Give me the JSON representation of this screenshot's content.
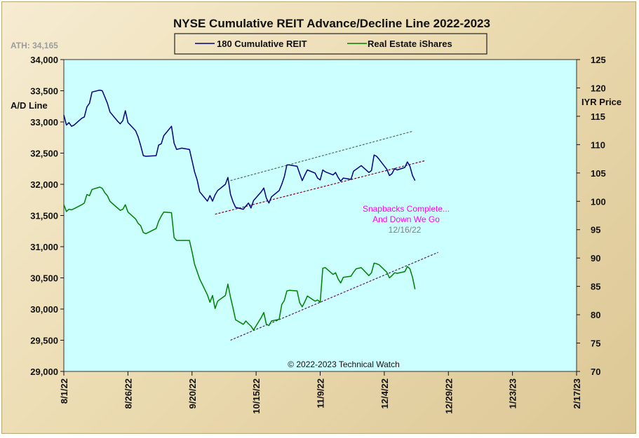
{
  "chart_data": {
    "type": "line",
    "title": "NYSE Cumulative  REIT Advance/Decline  Line 2022-2023",
    "ath_label": "ATH: 34,165",
    "ylabel_left": "A/D Line",
    "ylabel_right": "IYR Price",
    "copyright": "© 2022-2023  Technical  Watch",
    "annotation": {
      "lines": [
        "Snapbacks Complete...",
        "And Down We Go"
      ],
      "date": "12/16/22",
      "color": "#ff00ff",
      "date_color": "#808080"
    },
    "ylim_left": [
      29000,
      34000
    ],
    "ylim_right": [
      70,
      125
    ],
    "yticks_left": [
      "29,000",
      "29,500",
      "30,000",
      "30,500",
      "31,000",
      "31,500",
      "32,000",
      "32,500",
      "33,000",
      "33,500",
      "34,000"
    ],
    "yticks_left_values": [
      29000,
      29500,
      30000,
      30500,
      31000,
      31500,
      32000,
      32500,
      33000,
      33500,
      34000
    ],
    "yticks_right": [
      "70",
      "75",
      "80",
      "85",
      "90",
      "95",
      "100",
      "105",
      "110",
      "115",
      "120",
      "125"
    ],
    "yticks_right_values": [
      70,
      75,
      80,
      85,
      90,
      95,
      100,
      105,
      110,
      115,
      120,
      125
    ],
    "x_range": [
      "2022-08-01",
      "2023-02-17"
    ],
    "xticks": [
      "8/1/22",
      "8/26/22",
      "9/20/22",
      "10/15/22",
      "11/9/22",
      "12/4/22",
      "12/29/22",
      "1/23/23",
      "2/17/23"
    ],
    "xticks_dates": [
      "2022-08-01",
      "2022-08-26",
      "2022-09-20",
      "2022-10-15",
      "2022-11-09",
      "2022-12-04",
      "2022-12-29",
      "2023-01-23",
      "2023-02-17"
    ],
    "colors": {
      "plot_bg": "#ccffff",
      "ad_line": "#000080",
      "iyr": "#008000",
      "upper_channel": "#556b55",
      "lower_channel": "#800020",
      "lower_channel_iyr": "#5a1a6e"
    },
    "series": [
      {
        "name": "180 Cumulative REIT",
        "axis": "left",
        "color": "#000080",
        "points": [
          [
            "2022-08-01",
            33110
          ],
          [
            "2022-08-02",
            32950
          ],
          [
            "2022-08-03",
            32990
          ],
          [
            "2022-08-04",
            32930
          ],
          [
            "2022-08-05",
            32950
          ],
          [
            "2022-08-08",
            33060
          ],
          [
            "2022-08-09",
            33080
          ],
          [
            "2022-08-10",
            33240
          ],
          [
            "2022-08-11",
            33300
          ],
          [
            "2022-08-12",
            33480
          ],
          [
            "2022-08-15",
            33510
          ],
          [
            "2022-08-16",
            33500
          ],
          [
            "2022-08-17",
            33400
          ],
          [
            "2022-08-18",
            33300
          ],
          [
            "2022-08-19",
            33160
          ],
          [
            "2022-08-22",
            33010
          ],
          [
            "2022-08-23",
            32970
          ],
          [
            "2022-08-24",
            33020
          ],
          [
            "2022-08-25",
            33180
          ],
          [
            "2022-08-26",
            32990
          ],
          [
            "2022-08-29",
            32860
          ],
          [
            "2022-08-30",
            32760
          ],
          [
            "2022-08-31",
            32620
          ],
          [
            "2022-09-01",
            32460
          ],
          [
            "2022-09-02",
            32450
          ],
          [
            "2022-09-06",
            32460
          ],
          [
            "2022-09-07",
            32630
          ],
          [
            "2022-09-08",
            32650
          ],
          [
            "2022-09-09",
            32780
          ],
          [
            "2022-09-12",
            32930
          ],
          [
            "2022-09-13",
            32660
          ],
          [
            "2022-09-14",
            32560
          ],
          [
            "2022-09-15",
            32570
          ],
          [
            "2022-09-16",
            32580
          ],
          [
            "2022-09-19",
            32560
          ],
          [
            "2022-09-20",
            32380
          ],
          [
            "2022-09-21",
            32200
          ],
          [
            "2022-09-22",
            32070
          ],
          [
            "2022-09-23",
            31880
          ],
          [
            "2022-09-26",
            31730
          ],
          [
            "2022-09-27",
            31820
          ],
          [
            "2022-09-28",
            31730
          ],
          [
            "2022-09-29",
            31830
          ],
          [
            "2022-09-30",
            31900
          ],
          [
            "2022-10-03",
            32000
          ],
          [
            "2022-10-04",
            32110
          ],
          [
            "2022-10-05",
            31840
          ],
          [
            "2022-10-06",
            31720
          ],
          [
            "2022-10-07",
            31630
          ],
          [
            "2022-10-10",
            31600
          ],
          [
            "2022-10-11",
            31650
          ],
          [
            "2022-10-12",
            31700
          ],
          [
            "2022-10-13",
            31620
          ],
          [
            "2022-10-14",
            31740
          ],
          [
            "2022-10-17",
            31880
          ],
          [
            "2022-10-18",
            31940
          ],
          [
            "2022-10-19",
            31780
          ],
          [
            "2022-10-20",
            31700
          ],
          [
            "2022-10-21",
            31800
          ],
          [
            "2022-10-24",
            31900
          ],
          [
            "2022-10-25",
            32000
          ],
          [
            "2022-10-26",
            32120
          ],
          [
            "2022-10-27",
            32310
          ],
          [
            "2022-10-28",
            32310
          ],
          [
            "2022-10-31",
            32290
          ],
          [
            "2022-11-01",
            32170
          ],
          [
            "2022-11-02",
            32060
          ],
          [
            "2022-11-03",
            32150
          ],
          [
            "2022-11-04",
            32230
          ],
          [
            "2022-11-07",
            32180
          ],
          [
            "2022-11-08",
            32100
          ],
          [
            "2022-11-09",
            32070
          ],
          [
            "2022-11-10",
            32230
          ],
          [
            "2022-11-11",
            32200
          ],
          [
            "2022-11-14",
            32150
          ],
          [
            "2022-11-15",
            32190
          ],
          [
            "2022-11-16",
            32110
          ],
          [
            "2022-11-17",
            32050
          ],
          [
            "2022-11-18",
            32100
          ],
          [
            "2022-11-21",
            32080
          ],
          [
            "2022-11-22",
            32210
          ],
          [
            "2022-11-23",
            32240
          ],
          [
            "2022-11-25",
            32300
          ],
          [
            "2022-11-28",
            32190
          ],
          [
            "2022-11-29",
            32220
          ],
          [
            "2022-11-30",
            32470
          ],
          [
            "2022-12-01",
            32450
          ],
          [
            "2022-12-02",
            32400
          ],
          [
            "2022-12-05",
            32240
          ],
          [
            "2022-12-06",
            32140
          ],
          [
            "2022-12-07",
            32170
          ],
          [
            "2022-12-08",
            32250
          ],
          [
            "2022-12-09",
            32230
          ],
          [
            "2022-12-12",
            32270
          ],
          [
            "2022-12-13",
            32360
          ],
          [
            "2022-12-14",
            32290
          ],
          [
            "2022-12-15",
            32140
          ],
          [
            "2022-12-16",
            32060
          ]
        ]
      },
      {
        "name": "Real Estate iShares",
        "axis": "right",
        "color": "#008000",
        "points": [
          [
            "2022-08-01",
            99.4
          ],
          [
            "2022-08-02",
            98.2
          ],
          [
            "2022-08-03",
            98.6
          ],
          [
            "2022-08-04",
            98.5
          ],
          [
            "2022-08-05",
            98.7
          ],
          [
            "2022-08-08",
            99.4
          ],
          [
            "2022-08-09",
            99.7
          ],
          [
            "2022-08-10",
            101.2
          ],
          [
            "2022-08-11",
            101.0
          ],
          [
            "2022-08-12",
            102.1
          ],
          [
            "2022-08-15",
            102.5
          ],
          [
            "2022-08-16",
            102.3
          ],
          [
            "2022-08-17",
            101.5
          ],
          [
            "2022-08-18",
            101.0
          ],
          [
            "2022-08-19",
            100.0
          ],
          [
            "2022-08-22",
            98.8
          ],
          [
            "2022-08-23",
            98.4
          ],
          [
            "2022-08-24",
            98.6
          ],
          [
            "2022-08-25",
            99.4
          ],
          [
            "2022-08-26",
            98.1
          ],
          [
            "2022-08-29",
            96.9
          ],
          [
            "2022-08-30",
            96.1
          ],
          [
            "2022-08-31",
            95.7
          ],
          [
            "2022-09-01",
            94.5
          ],
          [
            "2022-09-02",
            94.3
          ],
          [
            "2022-09-06",
            95.2
          ],
          [
            "2022-09-07",
            96.5
          ],
          [
            "2022-09-08",
            97.4
          ],
          [
            "2022-09-09",
            98.1
          ],
          [
            "2022-09-12",
            98.0
          ],
          [
            "2022-09-13",
            93.6
          ],
          [
            "2022-09-14",
            93.1
          ],
          [
            "2022-09-15",
            93.1
          ],
          [
            "2022-09-16",
            93.1
          ],
          [
            "2022-09-19",
            93.1
          ],
          [
            "2022-09-20",
            91.1
          ],
          [
            "2022-09-21",
            88.9
          ],
          [
            "2022-09-22",
            87.6
          ],
          [
            "2022-09-23",
            86.3
          ],
          [
            "2022-09-26",
            83.5
          ],
          [
            "2022-09-27",
            82.2
          ],
          [
            "2022-09-28",
            83.4
          ],
          [
            "2022-09-29",
            81.1
          ],
          [
            "2022-09-30",
            82.4
          ],
          [
            "2022-10-03",
            83.4
          ],
          [
            "2022-10-04",
            85.4
          ],
          [
            "2022-10-05",
            83.1
          ],
          [
            "2022-10-06",
            81.2
          ],
          [
            "2022-10-07",
            79.1
          ],
          [
            "2022-10-10",
            78.3
          ],
          [
            "2022-10-11",
            78.9
          ],
          [
            "2022-10-12",
            78.4
          ],
          [
            "2022-10-13",
            78.0
          ],
          [
            "2022-10-14",
            77.3
          ],
          [
            "2022-10-17",
            79.5
          ],
          [
            "2022-10-18",
            80.4
          ],
          [
            "2022-10-19",
            78.3
          ],
          [
            "2022-10-20",
            78.1
          ],
          [
            "2022-10-21",
            78.9
          ],
          [
            "2022-10-24",
            79.2
          ],
          [
            "2022-10-25",
            81.8
          ],
          [
            "2022-10-26",
            82.5
          ],
          [
            "2022-10-27",
            84.2
          ],
          [
            "2022-10-28",
            84.3
          ],
          [
            "2022-10-31",
            84.2
          ],
          [
            "2022-11-01",
            82.1
          ],
          [
            "2022-11-02",
            81.4
          ],
          [
            "2022-11-03",
            82.3
          ],
          [
            "2022-11-04",
            83.3
          ],
          [
            "2022-11-07",
            82.4
          ],
          [
            "2022-11-08",
            82.6
          ],
          [
            "2022-11-09",
            82.2
          ],
          [
            "2022-11-10",
            88.2
          ],
          [
            "2022-11-11",
            88.3
          ],
          [
            "2022-11-14",
            87.1
          ],
          [
            "2022-11-15",
            87.4
          ],
          [
            "2022-11-16",
            86.3
          ],
          [
            "2022-11-17",
            85.6
          ],
          [
            "2022-11-18",
            86.6
          ],
          [
            "2022-11-21",
            86.8
          ],
          [
            "2022-11-22",
            87.5
          ],
          [
            "2022-11-23",
            88.1
          ],
          [
            "2022-11-25",
            88.3
          ],
          [
            "2022-11-28",
            86.9
          ],
          [
            "2022-11-29",
            87.4
          ],
          [
            "2022-11-30",
            89.1
          ],
          [
            "2022-12-01",
            89.0
          ],
          [
            "2022-12-02",
            88.8
          ],
          [
            "2022-12-05",
            87.5
          ],
          [
            "2022-12-06",
            86.5
          ],
          [
            "2022-12-07",
            86.9
          ],
          [
            "2022-12-08",
            87.4
          ],
          [
            "2022-12-09",
            87.3
          ],
          [
            "2022-12-12",
            87.6
          ],
          [
            "2022-12-13",
            88.5
          ],
          [
            "2022-12-14",
            88.1
          ],
          [
            "2022-12-15",
            86.6
          ],
          [
            "2022-12-16",
            84.5
          ]
        ]
      }
    ],
    "trendlines": [
      {
        "axis": "left",
        "style": "dashed",
        "color": "#556b55",
        "points": [
          [
            "2022-10-05",
            32060
          ],
          [
            "2022-12-15",
            32850
          ]
        ]
      },
      {
        "axis": "left",
        "style": "dashed",
        "color": "#800020",
        "points": [
          [
            "2022-09-29",
            31520
          ],
          [
            "2022-12-20",
            32380
          ]
        ]
      },
      {
        "axis": "right",
        "style": "dashed",
        "color": "#5a1a6e",
        "points": [
          [
            "2022-10-05",
            75.5
          ],
          [
            "2022-12-25",
            91.0
          ]
        ]
      }
    ]
  }
}
